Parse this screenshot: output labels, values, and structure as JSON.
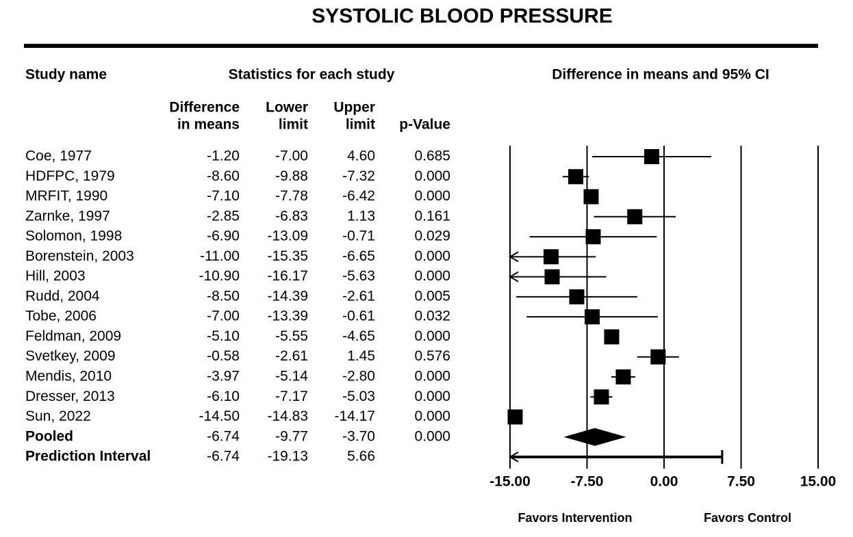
{
  "chart_data": {
    "type": "forest",
    "title": "SYSTOLIC BLOOD PRESSURE",
    "study_header": "Study name",
    "stats_header": "Statistics for each study",
    "plot_header": "Difference in means and 95% CI",
    "categories": [
      "Coe, 1977",
      "HDFPC, 1979",
      "MRFIT, 1990",
      "Zarnke, 1997",
      "Solomon, 1998",
      "Borenstein, 2003",
      "Hill, 2003",
      "Rudd, 2004",
      "Tobe, 2006",
      "Feldman, 2009",
      "Svetkey, 2009",
      "Mendis, 2010",
      "Dresser, 2013",
      "Sun, 2022"
    ],
    "columns": [
      {
        "header": [
          "Difference",
          "in means"
        ],
        "values": [
          -1.2,
          -8.6,
          -7.1,
          -2.85,
          -6.9,
          -11,
          -10.9,
          -8.5,
          -7,
          -5.1,
          -0.58,
          -3.97,
          -6.1,
          -14.5
        ],
        "value_labels": [
          "-1.20",
          "-8.60",
          "-7.10",
          "-2.85",
          "-6.90",
          "-11.00",
          "-10.90",
          "-8.50",
          "-7.00",
          "-5.10",
          "-0.58",
          "-3.97",
          "-6.10",
          "-14.50"
        ]
      },
      {
        "header": [
          "Lower",
          "limit"
        ],
        "values": [
          -7,
          -9.88,
          -7.78,
          -6.83,
          -13.09,
          -15.35,
          -16.17,
          -14.39,
          -13.39,
          -5.55,
          -2.61,
          -5.14,
          -7.17,
          -14.83
        ],
        "value_labels": [
          "-7.00",
          "-9.88",
          "-7.78",
          "-6.83",
          "-13.09",
          "-15.35",
          "-16.17",
          "-14.39",
          "-13.39",
          "-5.55",
          "-2.61",
          "-5.14",
          "-7.17",
          "-14.83"
        ]
      },
      {
        "header": [
          "Upper",
          "limit"
        ],
        "values": [
          4.6,
          -7.32,
          -6.42,
          1.13,
          -0.71,
          -6.65,
          -5.63,
          -2.61,
          -0.61,
          -4.65,
          1.45,
          -2.8,
          -5.03,
          -14.17
        ],
        "value_labels": [
          "4.60",
          "-7.32",
          "-6.42",
          "1.13",
          "-0.71",
          "-6.65",
          "-5.63",
          "-2.61",
          "-0.61",
          "-4.65",
          "1.45",
          "-2.80",
          "-5.03",
          "-14.17"
        ]
      },
      {
        "header": [
          "p-Value"
        ],
        "labels": [
          "0.685",
          "0.000",
          "0.000",
          "0.161",
          "0.029",
          "0.000",
          "0.000",
          "0.005",
          "0.032",
          "0.000",
          "0.576",
          "0.000",
          "0.000",
          "0.000"
        ]
      }
    ],
    "pooled": {
      "label": "Pooled",
      "values": [
        -6.74,
        -9.77,
        -3.7
      ],
      "value_labels": [
        "-6.74",
        "-9.77",
        "-3.70"
      ],
      "p_value": "0.000"
    },
    "prediction_interval": {
      "label": "Prediction Interval",
      "values": [
        -6.74,
        -19.13,
        5.66
      ],
      "value_labels": [
        "-6.74",
        "-19.13",
        "5.66"
      ]
    },
    "xlim": [
      -15,
      15
    ],
    "xticks": [
      {
        "value": -15,
        "label": "-15.00"
      },
      {
        "value": -7.5,
        "label": "-7.50"
      },
      {
        "value": 0,
        "label": "0.00"
      },
      {
        "value": 7.5,
        "label": "7.50"
      },
      {
        "value": 15,
        "label": "15.00"
      }
    ],
    "left_label": "Favors Intervention",
    "right_label": "Favors Control",
    "grid": true,
    "color": "#000000"
  }
}
